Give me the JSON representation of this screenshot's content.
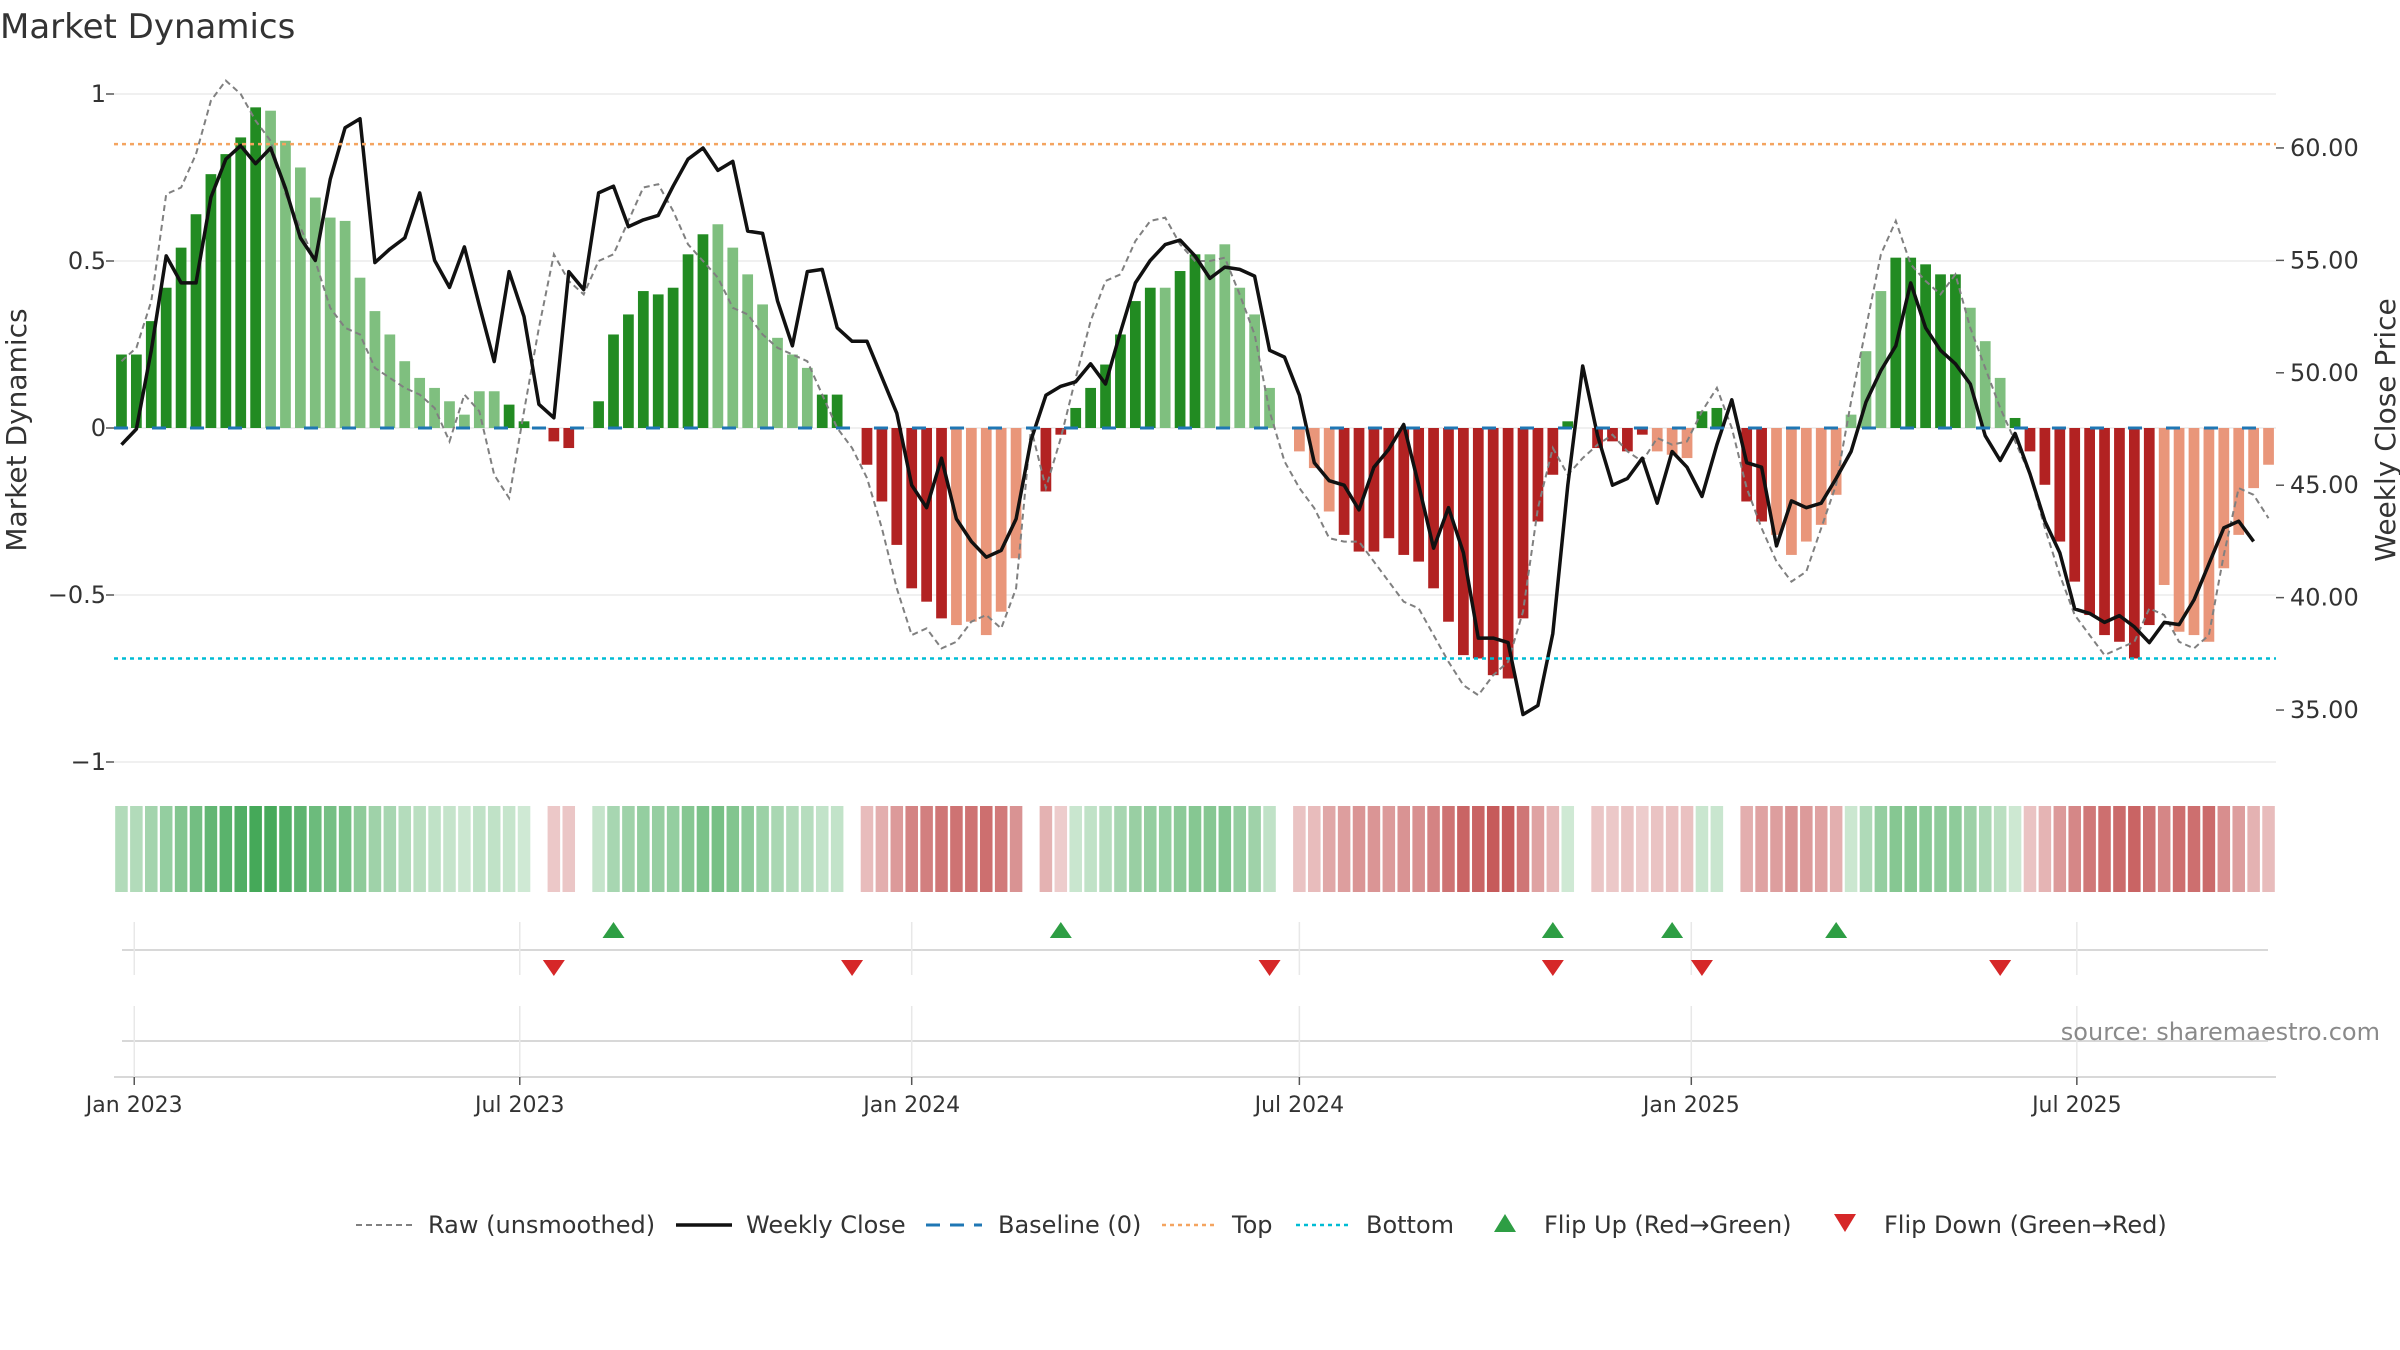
{
  "title": "Market Dynamics",
  "source": "source: sharemaestro.com",
  "colors": {
    "green_dark": "#228b22",
    "green_light": "#7fbf7f",
    "red_dark": "#b22222",
    "red_light": "#e9967a",
    "top_line": "#f4a460",
    "bottom_line": "#00bcd4",
    "baseline": "#1f77b4",
    "close": "#111111",
    "raw": "#808080",
    "flip_up": "#2e9e44",
    "flip_down": "#d62728"
  },
  "chart_data": {
    "type": "bar",
    "title": "Market Dynamics",
    "ylabel_left": "Market Dynamics",
    "ylabel_right": "Weekly Close Price",
    "ylim_left": [
      -1,
      1
    ],
    "ylim_right": [
      32.6,
      62.4
    ],
    "yticks_left": [
      {
        "v": 1,
        "label": "1"
      },
      {
        "v": 0.5,
        "label": "0.5"
      },
      {
        "v": 0,
        "label": "0"
      },
      {
        "v": -0.5,
        "label": "−0.5"
      },
      {
        "v": -1,
        "label": "−1"
      }
    ],
    "yticks_right": [
      "35.00",
      "40.00",
      "45.00",
      "50.00",
      "55.00",
      "60.00"
    ],
    "top_level": 0.85,
    "bottom_level": -0.69,
    "baseline_level": 0,
    "start_date": "2022-12-26",
    "x_tick_labels": [
      {
        "date": "2023-01-01",
        "label": "Jan 2023"
      },
      {
        "date": "2023-07-01",
        "label": "Jul 2023"
      },
      {
        "date": "2024-01-01",
        "label": "Jan 2024"
      },
      {
        "date": "2024-07-01",
        "label": "Jul 2024"
      },
      {
        "date": "2025-01-01",
        "label": "Jan 2025"
      },
      {
        "date": "2025-07-01",
        "label": "Jul 2025"
      }
    ],
    "dynamics": [
      0.22,
      0.22,
      0.32,
      0.42,
      0.54,
      0.64,
      0.76,
      0.82,
      0.87,
      0.96,
      0.95,
      0.86,
      0.78,
      0.69,
      0.63,
      0.62,
      0.45,
      0.35,
      0.28,
      0.2,
      0.15,
      0.12,
      0.08,
      0.04,
      0.11,
      0.11,
      0.07,
      0.02,
      0.0,
      -0.04,
      -0.06,
      0.0,
      0.08,
      0.28,
      0.34,
      0.41,
      0.4,
      0.42,
      0.52,
      0.58,
      0.61,
      0.54,
      0.46,
      0.37,
      0.27,
      0.22,
      0.18,
      0.1,
      0.1,
      0.0,
      -0.11,
      -0.22,
      -0.35,
      -0.48,
      -0.52,
      -0.57,
      -0.59,
      -0.58,
      -0.62,
      -0.55,
      -0.39,
      0.0,
      -0.19,
      -0.02,
      0.06,
      0.12,
      0.19,
      0.28,
      0.38,
      0.42,
      0.42,
      0.47,
      0.52,
      0.52,
      0.55,
      0.42,
      0.34,
      0.12,
      0.0,
      -0.07,
      -0.12,
      -0.25,
      -0.32,
      -0.37,
      -0.37,
      -0.33,
      -0.38,
      -0.4,
      -0.48,
      -0.58,
      -0.68,
      -0.69,
      -0.74,
      -0.75,
      -0.57,
      -0.28,
      -0.14,
      0.02,
      0.0,
      -0.06,
      -0.04,
      -0.07,
      -0.02,
      -0.07,
      -0.08,
      -0.09,
      0.05,
      0.06,
      0.0,
      -0.22,
      -0.28,
      -0.32,
      -0.38,
      -0.34,
      -0.29,
      -0.2,
      0.04,
      0.23,
      0.41,
      0.51,
      0.51,
      0.49,
      0.46,
      0.46,
      0.36,
      0.26,
      0.15,
      0.03,
      -0.07,
      -0.17,
      -0.34,
      -0.46,
      -0.56,
      -0.62,
      -0.64,
      -0.69,
      -0.59,
      -0.47,
      -0.61,
      -0.62,
      -0.64,
      -0.42,
      -0.32,
      -0.18,
      -0.11
    ],
    "shades": "ddddddddddllllllllllllllllddddddddddddddllllllldddddddddllllllddddddddlddllllllllldddddddddddddddddddddllldddddlllllllldddddlllddddddddddllllllllldddddddddllllllllll",
    "weekly_close": [
      46.8,
      47.5,
      51.0,
      55.2,
      54.0,
      54.0,
      57.8,
      59.5,
      60.1,
      59.3,
      60.0,
      58.2,
      56.0,
      55.0,
      58.6,
      60.9,
      61.3,
      54.9,
      55.5,
      56.0,
      58.0,
      55.0,
      53.8,
      55.6,
      53.0,
      50.5,
      54.5,
      52.5,
      48.6,
      48.0,
      54.5,
      53.7,
      58.0,
      58.3,
      56.5,
      56.8,
      57.0,
      58.3,
      59.5,
      60.0,
      59.0,
      59.4,
      56.3,
      56.2,
      53.2,
      51.2,
      54.5,
      54.6,
      52.0,
      51.4,
      51.4,
      49.8,
      48.2,
      45.0,
      44.0,
      46.2,
      43.5,
      42.5,
      41.8,
      42.1,
      43.5,
      47.0,
      49.0,
      49.4,
      49.6,
      50.4,
      49.5,
      51.8,
      54.0,
      55.0,
      55.7,
      55.9,
      55.2,
      54.2,
      54.7,
      54.6,
      54.3,
      51.0,
      50.7,
      49.0,
      46.0,
      45.2,
      45.0,
      43.9,
      45.8,
      46.6,
      47.7,
      45.0,
      42.2,
      44.0,
      42.0,
      38.2,
      38.2,
      38.0,
      34.8,
      35.2,
      38.4,
      45.0,
      50.3,
      47.2,
      45.0,
      45.3,
      46.2,
      44.2,
      46.5,
      45.8,
      44.5,
      46.8,
      48.8,
      46.0,
      45.8,
      42.3,
      44.3,
      44.0,
      44.2,
      45.3,
      46.5,
      48.7,
      50.1,
      51.2,
      54.0,
      52.0,
      51.0,
      50.4,
      49.5,
      47.2,
      46.1,
      47.3,
      45.5,
      43.4,
      42.0,
      39.5,
      39.3,
      38.9,
      39.2,
      38.7,
      38.0,
      38.9,
      38.8,
      39.9,
      41.5,
      43.1,
      43.4,
      42.5
    ]
  },
  "raw_series": [
    0.2,
    0.24,
    0.38,
    0.7,
    0.72,
    0.82,
    0.98,
    1.04,
    1.0,
    0.92,
    0.86,
    0.7,
    0.6,
    0.5,
    0.36,
    0.3,
    0.28,
    0.18,
    0.15,
    0.12,
    0.1,
    0.06,
    -0.04,
    0.1,
    0.05,
    -0.14,
    -0.21,
    0.05,
    0.3,
    0.52,
    0.44,
    0.4,
    0.5,
    0.52,
    0.62,
    0.72,
    0.73,
    0.65,
    0.55,
    0.5,
    0.45,
    0.36,
    0.34,
    0.28,
    0.24,
    0.22,
    0.2,
    0.1,
    0.0,
    -0.06,
    -0.15,
    -0.3,
    -0.48,
    -0.62,
    -0.6,
    -0.66,
    -0.64,
    -0.58,
    -0.56,
    -0.6,
    -0.48,
    0.0,
    -0.18,
    -0.03,
    0.15,
    0.32,
    0.44,
    0.46,
    0.56,
    0.62,
    0.63,
    0.55,
    0.5,
    0.5,
    0.51,
    0.4,
    0.28,
    0.05,
    -0.1,
    -0.18,
    -0.24,
    -0.33,
    -0.34,
    -0.34,
    -0.4,
    -0.46,
    -0.52,
    -0.54,
    -0.62,
    -0.7,
    -0.77,
    -0.8,
    -0.74,
    -0.7,
    -0.55,
    -0.24,
    -0.06,
    -0.14,
    -0.09,
    -0.05,
    -0.02,
    -0.07,
    -0.1,
    -0.03,
    -0.05,
    -0.04,
    0.05,
    0.12,
    0.0,
    -0.18,
    -0.3,
    -0.4,
    -0.46,
    -0.43,
    -0.3,
    -0.17,
    0.08,
    0.3,
    0.52,
    0.62,
    0.49,
    0.44,
    0.4,
    0.46,
    0.3,
    0.18,
    0.06,
    -0.04,
    -0.14,
    -0.3,
    -0.44,
    -0.56,
    -0.62,
    -0.68,
    -0.66,
    -0.64,
    -0.54,
    -0.56,
    -0.64,
    -0.66,
    -0.62,
    -0.38,
    -0.18,
    -0.2,
    -0.27
  ],
  "flips_up": [
    33,
    63,
    96,
    104,
    115
  ],
  "flips_down": [
    29,
    49,
    77,
    96,
    106,
    126
  ],
  "legend": {
    "raw": "Raw (unsmoothed)",
    "close": "Weekly Close",
    "baseline": "Baseline (0)",
    "top": "Top",
    "bottom": "Bottom",
    "flip_up": "Flip Up (Red→Green)",
    "flip_down": "Flip Down (Green→Red)"
  }
}
